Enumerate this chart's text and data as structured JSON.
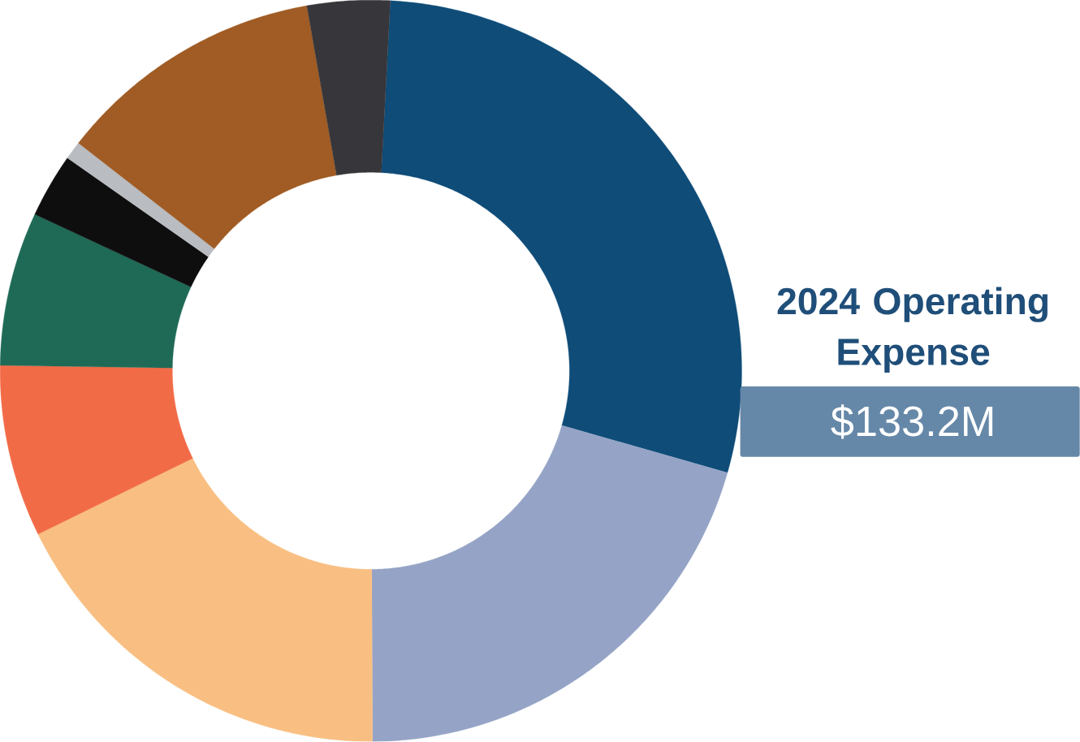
{
  "chart_data": {
    "type": "donut",
    "title": "2024 Operating Expense",
    "subtitle": "$133.2M",
    "categories": [
      null,
      null,
      null,
      null,
      null,
      null,
      null,
      null,
      null
    ],
    "values": [
      28.6,
      20.5,
      17.8,
      7.5,
      6.7,
      2.8,
      0.8,
      11.7,
      3.6
    ],
    "colors": [
      "#0f4c78",
      "#95a4c6",
      "#f9bf82",
      "#f26b47",
      "#1f6a56",
      "#0e0e0e",
      "#b9bcc0",
      "#a05c24",
      "#37363a"
    ]
  }
}
